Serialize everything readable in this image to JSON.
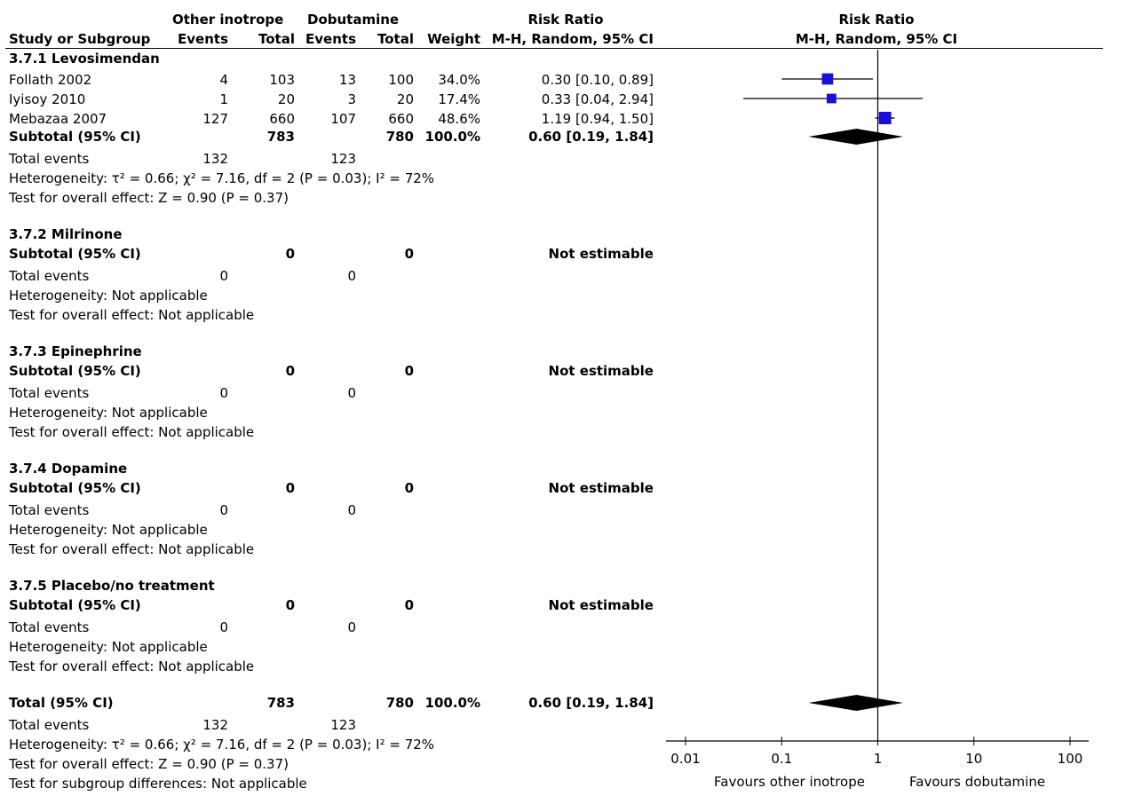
{
  "header": {
    "group1": "Other inotrope",
    "group2": "Dobutamine",
    "rr_title": "Risk Ratio",
    "study_col": "Study or Subgroup",
    "events1": "Events",
    "total1": "Total",
    "events2": "Events",
    "total2": "Total",
    "weight": "Weight",
    "method": "M-H, Random, 95% CI",
    "plot_title": "Risk Ratio",
    "plot_method": "M-H, Random, 95% CI"
  },
  "sg1": {
    "title": "3.7.1 Levosimendan",
    "studies": [
      {
        "name": "Follath 2002",
        "e1": "4",
        "n1": "103",
        "e2": "13",
        "n2": "100",
        "w": "34.0%",
        "rr": "0.30 [0.10, 0.89]"
      },
      {
        "name": "Iyisoy 2010",
        "e1": "1",
        "n1": "20",
        "e2": "3",
        "n2": "20",
        "w": "17.4%",
        "rr": "0.33 [0.04, 2.94]"
      },
      {
        "name": "Mebazaa 2007",
        "e1": "127",
        "n1": "660",
        "e2": "107",
        "n2": "660",
        "w": "48.6%",
        "rr": "1.19 [0.94, 1.50]"
      }
    ],
    "subtotal": {
      "label": "Subtotal (95% CI)",
      "n1": "783",
      "n2": "780",
      "w": "100.0%",
      "rr": "0.60 [0.19, 1.84]"
    },
    "events": {
      "label": "Total events",
      "e1": "132",
      "e2": "123"
    },
    "het": "Heterogeneity: τ² = 0.66; χ² = 7.16, df = 2 (P = 0.03); I² = 72%",
    "overall": "Test for overall effect: Z = 0.90 (P = 0.37)"
  },
  "sg2": {
    "title": "3.7.2 Milrinone",
    "subtotal_label": "Subtotal (95% CI)",
    "n1": "0",
    "n2": "0",
    "rr": "Not estimable",
    "events_label": "Total events",
    "e1": "0",
    "e2": "0",
    "het": "Heterogeneity: Not applicable",
    "overall": "Test for overall effect: Not applicable"
  },
  "sg3": {
    "title": "3.7.3 Epinephrine",
    "subtotal_label": "Subtotal (95% CI)",
    "n1": "0",
    "n2": "0",
    "rr": "Not estimable",
    "events_label": "Total events",
    "e1": "0",
    "e2": "0",
    "het": "Heterogeneity: Not applicable",
    "overall": "Test for overall effect: Not applicable"
  },
  "sg4": {
    "title": "3.7.4 Dopamine",
    "subtotal_label": "Subtotal (95% CI)",
    "n1": "0",
    "n2": "0",
    "rr": "Not estimable",
    "events_label": "Total events",
    "e1": "0",
    "e2": "0",
    "het": "Heterogeneity: Not applicable",
    "overall": "Test for overall effect: Not applicable"
  },
  "sg5": {
    "title": "3.7.5 Placebo/no treatment",
    "subtotal_label": "Subtotal (95% CI)",
    "n1": "0",
    "n2": "0",
    "rr": "Not estimable",
    "events_label": "Total events",
    "e1": "0",
    "e2": "0",
    "het": "Heterogeneity: Not applicable",
    "overall": "Test for overall effect: Not applicable"
  },
  "total": {
    "label": "Total (95% CI)",
    "n1": "783",
    "n2": "780",
    "w": "100.0%",
    "rr": "0.60 [0.19, 1.84]",
    "events_label": "Total events",
    "e1": "132",
    "e2": "123",
    "het": "Heterogeneity: τ² = 0.66; χ² = 7.16, df = 2 (P = 0.03); I² = 72%",
    "overall": "Test for overall effect: Z = 0.90 (P = 0.37)",
    "subgroup": "Test for subgroup differences: Not applicable"
  },
  "axis": {
    "favours_left": "Favours other inotrope",
    "favours_right": "Favours dobutamine"
  },
  "colors": {
    "marker": "#1a0fd6",
    "diamond": "#000000"
  },
  "chart_data": {
    "type": "scatter",
    "scale": "log",
    "xlim": [
      0.01,
      100
    ],
    "ticks": [
      {
        "v": 0.01,
        "label": "0.01"
      },
      {
        "v": 0.1,
        "label": "0.1"
      },
      {
        "v": 1,
        "label": "1"
      },
      {
        "v": 10,
        "label": "10"
      },
      {
        "v": 100,
        "label": "100"
      }
    ],
    "studies": [
      {
        "name": "Follath 2002",
        "rr": 0.3,
        "lo": 0.1,
        "hi": 0.89,
        "weight": 34.0
      },
      {
        "name": "Iyisoy 2010",
        "rr": 0.33,
        "lo": 0.04,
        "hi": 2.94,
        "weight": 17.4
      },
      {
        "name": "Mebazaa 2007",
        "rr": 1.19,
        "lo": 0.94,
        "hi": 1.5,
        "weight": 48.6
      }
    ],
    "subtotal_3_7_1": {
      "rr": 0.6,
      "lo": 0.19,
      "hi": 1.84
    },
    "total": {
      "rr": 0.6,
      "lo": 0.19,
      "hi": 1.84
    }
  }
}
